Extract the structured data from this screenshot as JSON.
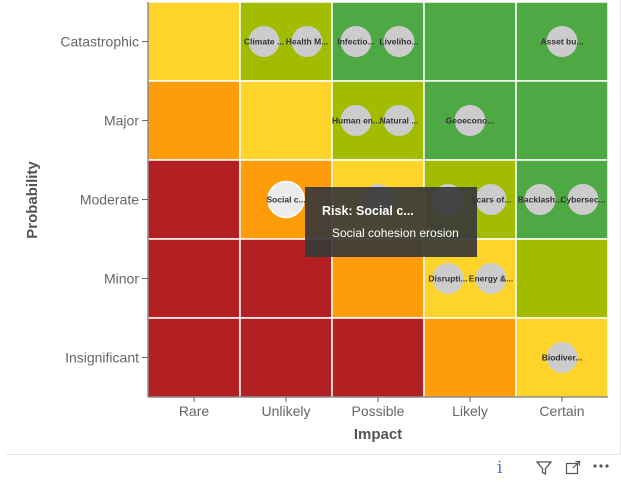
{
  "chart_data": {
    "type": "heatmap",
    "xlabel": "Impact",
    "ylabel": "Probability",
    "x_categories": [
      "Rare",
      "Unlikely",
      "Possible",
      "Likely",
      "Certain"
    ],
    "y_categories": [
      "Catastrophic",
      "Major",
      "Moderate",
      "Minor",
      "Insignificant"
    ],
    "cell_colors": [
      [
        "#ffd42a",
        "#a2bd00",
        "#4ea843",
        "#4ea843",
        "#4ea843"
      ],
      [
        "#ff9c0a",
        "#ffd42a",
        "#a2bd00",
        "#4ea843",
        "#4ea843"
      ],
      [
        "#b22024",
        "#ff9c0a",
        "#ffd42a",
        "#a2bd00",
        "#4ea843"
      ],
      [
        "#b22024",
        "#b22024",
        "#ff9c0a",
        "#ffd42a",
        "#a2bd00"
      ],
      [
        "#b22024",
        "#b22024",
        "#b22024",
        "#ff9c0a",
        "#ffd42a"
      ]
    ],
    "risks": [
      {
        "label": "Climate ...",
        "impact": "Unlikely",
        "probability": "Catastrophic",
        "slot": 0
      },
      {
        "label": "Health M...",
        "impact": "Unlikely",
        "probability": "Catastrophic",
        "slot": 1
      },
      {
        "label": "Infectio...",
        "impact": "Possible",
        "probability": "Catastrophic",
        "slot": 0
      },
      {
        "label": "Liveliho...",
        "impact": "Possible",
        "probability": "Catastrophic",
        "slot": 1
      },
      {
        "label": "Asset bu...",
        "impact": "Certain",
        "probability": "Catastrophic",
        "slot": 2
      },
      {
        "label": "Human en...",
        "impact": "Possible",
        "probability": "Major",
        "slot": 0
      },
      {
        "label": "Natural ...",
        "impact": "Possible",
        "probability": "Major",
        "slot": 1
      },
      {
        "label": "Geoecono...",
        "impact": "Likely",
        "probability": "Major",
        "slot": 2
      },
      {
        "label": "Social c...",
        "impact": "Unlikely",
        "probability": "Moderate",
        "slot": 2,
        "highlighted": true
      },
      {
        "label": "",
        "impact": "Possible",
        "probability": "Moderate",
        "slot": 2
      },
      {
        "label": "",
        "impact": "Likely",
        "probability": "Moderate",
        "slot": 0
      },
      {
        "label": "Scars of...",
        "impact": "Likely",
        "probability": "Moderate",
        "slot": 1
      },
      {
        "label": "Backlash...",
        "impact": "Certain",
        "probability": "Moderate",
        "slot": 0
      },
      {
        "label": "Cybersec...",
        "impact": "Certain",
        "probability": "Moderate",
        "slot": 1
      },
      {
        "label": "Disrupti...",
        "impact": "Likely",
        "probability": "Minor",
        "slot": 0
      },
      {
        "label": "Energy &...",
        "impact": "Likely",
        "probability": "Minor",
        "slot": 1
      },
      {
        "label": "Biodiver...",
        "impact": "Certain",
        "probability": "Insignificant",
        "slot": 2
      }
    ]
  },
  "tooltip": {
    "title": "Risk: Social c...",
    "value": "Social cohesion erosion"
  },
  "footer": {
    "info_icon": "i",
    "filter_icon": "filter-icon",
    "focus_icon": "focus-mode-icon",
    "more_icon": "more-options-icon"
  }
}
